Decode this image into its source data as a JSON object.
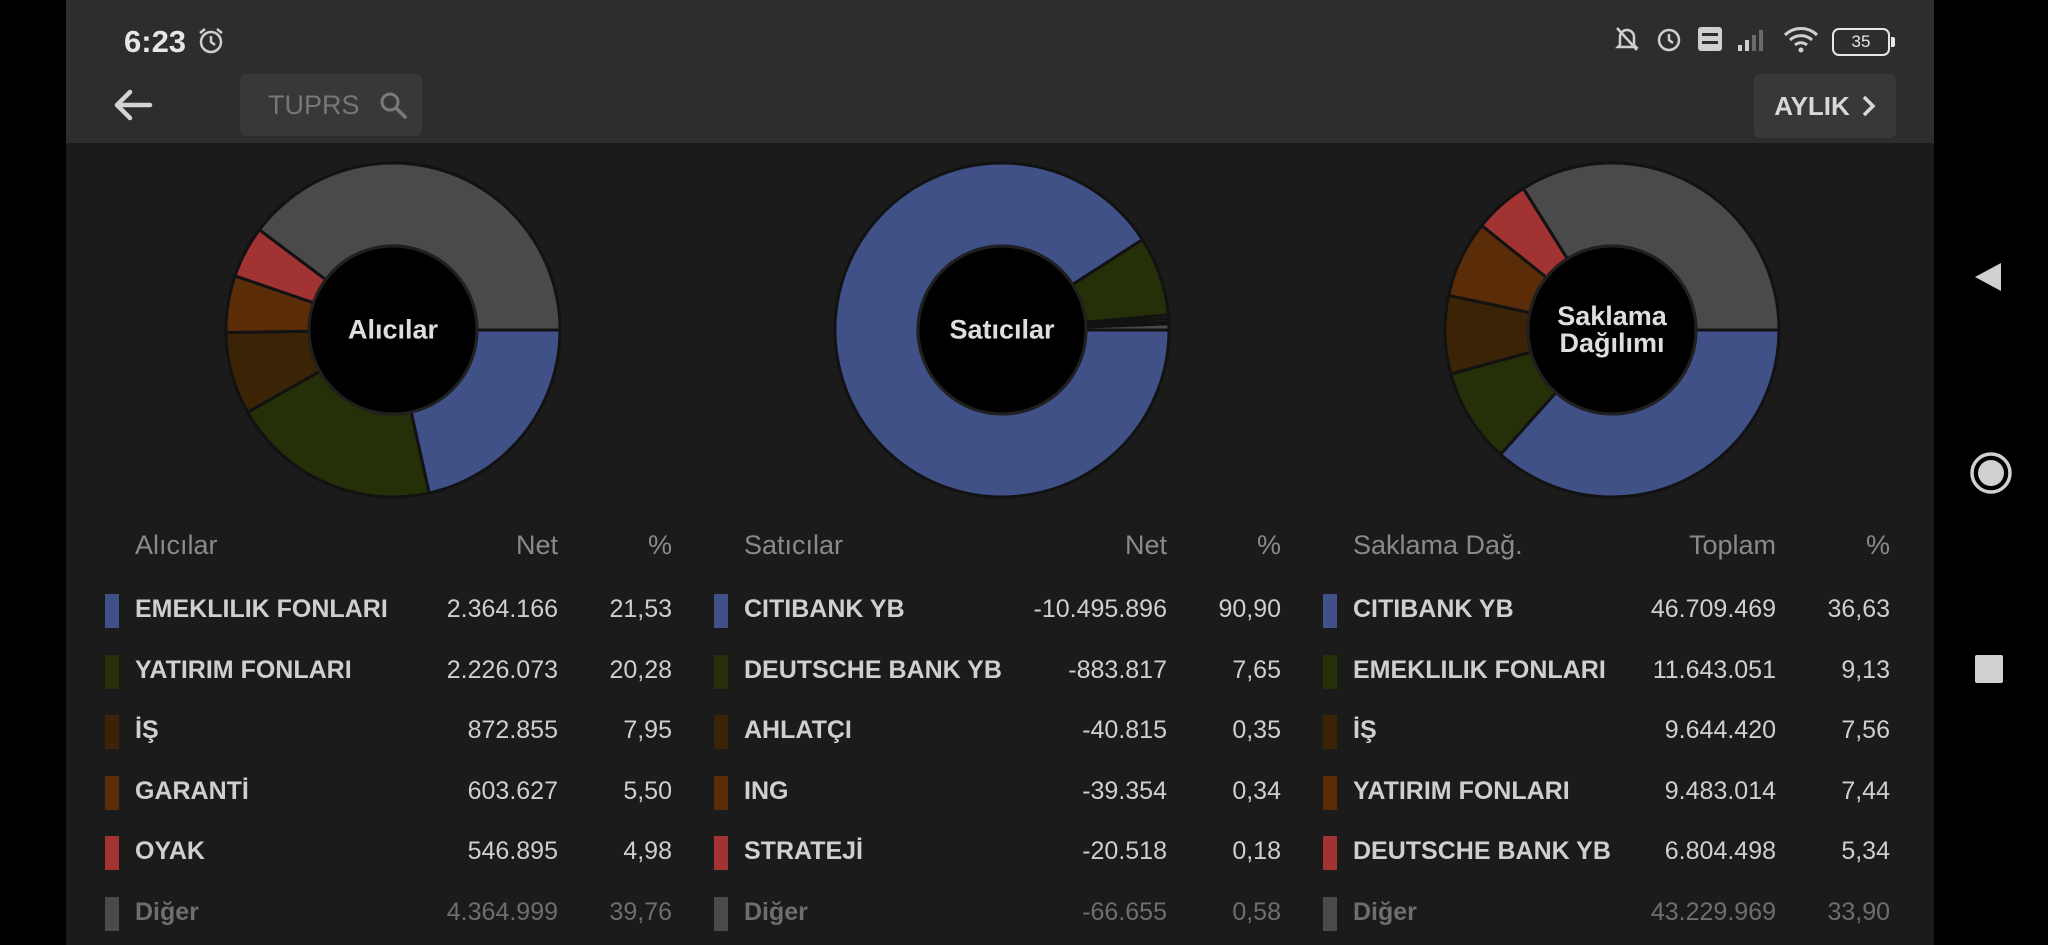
{
  "status_bar": {
    "time": "6:23",
    "battery": "35"
  },
  "search": {
    "value": "TUPRS"
  },
  "period_button": {
    "label": "AYLIK"
  },
  "colors": {
    "blue": "#405188",
    "olive": "#263008",
    "brown_dark": "#3b2406",
    "brown": "#5a2c08",
    "red": "#a13332",
    "grey": "#4a4a4a",
    "accent_text": "#cfcfcf"
  },
  "icons": [
    "alarm-icon",
    "muted-bell-icon",
    "volte-icon",
    "signal-icon",
    "wifi-icon",
    "battery-icon",
    "back-arrow-icon",
    "search-icon",
    "chevron-right-icon",
    "nav-back-icon",
    "nav-home-icon",
    "nav-recents-icon"
  ],
  "panels": [
    {
      "title": "Alıcılar",
      "headers": {
        "name": "Alıcılar",
        "value": "Net",
        "pct": "%"
      },
      "rows": [
        {
          "name": "EMEKLILIK FONLARI",
          "value": "2.364.166",
          "pct": "21,53"
        },
        {
          "name": "YATIRIM FONLARI",
          "value": "2.226.073",
          "pct": "20,28"
        },
        {
          "name": "İŞ",
          "value": "872.855",
          "pct": "7,95"
        },
        {
          "name": "GARANTİ",
          "value": "603.627",
          "pct": "5,50"
        },
        {
          "name": "OYAK",
          "value": "546.895",
          "pct": "4,98"
        },
        {
          "name": "Diğer",
          "value": "4.364.999",
          "pct": "39,76"
        }
      ]
    },
    {
      "title": "Satıcılar",
      "headers": {
        "name": "Satıcılar",
        "value": "Net",
        "pct": "%"
      },
      "rows": [
        {
          "name": "CITIBANK YB",
          "value": "-10.495.896",
          "pct": "90,90"
        },
        {
          "name": "DEUTSCHE BANK YB",
          "value": "-883.817",
          "pct": "7,65"
        },
        {
          "name": "AHLATÇI",
          "value": "-40.815",
          "pct": "0,35"
        },
        {
          "name": "ING",
          "value": "-39.354",
          "pct": "0,34"
        },
        {
          "name": "STRATEJİ",
          "value": "-20.518",
          "pct": "0,18"
        },
        {
          "name": "Diğer",
          "value": "-66.655",
          "pct": "0,58"
        }
      ]
    },
    {
      "title_line1": "Saklama",
      "title_line2": "Dağılımı",
      "headers": {
        "name": "Saklama Dağ.",
        "value": "Toplam",
        "pct": "%"
      },
      "rows": [
        {
          "name": "CITIBANK YB",
          "value": "46.709.469",
          "pct": "36,63"
        },
        {
          "name": "EMEKLILIK FONLARI",
          "value": "11.643.051",
          "pct": "9,13"
        },
        {
          "name": "İŞ",
          "value": "9.644.420",
          "pct": "7,56"
        },
        {
          "name": "YATIRIM FONLARI",
          "value": "9.483.014",
          "pct": "7,44"
        },
        {
          "name": "DEUTSCHE BANK YB",
          "value": "6.804.498",
          "pct": "5,34"
        },
        {
          "name": "Diğer",
          "value": "43.229.969",
          "pct": "33,90"
        }
      ]
    }
  ],
  "chart_data": [
    {
      "type": "pie",
      "title": "Alıcılar",
      "categories": [
        "EMEKLILIK FONLARI",
        "YATIRIM FONLARI",
        "İŞ",
        "GARANTİ",
        "OYAK",
        "Diğer"
      ],
      "values": [
        21.53,
        20.28,
        7.95,
        5.5,
        4.98,
        39.76
      ]
    },
    {
      "type": "pie",
      "title": "Satıcılar",
      "categories": [
        "CITIBANK YB",
        "DEUTSCHE BANK YB",
        "AHLATÇI",
        "ING",
        "STRATEJİ",
        "Diğer"
      ],
      "values": [
        90.9,
        7.65,
        0.35,
        0.34,
        0.18,
        0.58
      ]
    },
    {
      "type": "pie",
      "title": "Saklama Dağılımı",
      "categories": [
        "CITIBANK YB",
        "EMEKLILIK FONLARI",
        "İŞ",
        "YATIRIM FONLARI",
        "DEUTSCHE BANK YB",
        "Diğer"
      ],
      "values": [
        36.63,
        9.13,
        7.56,
        7.44,
        5.34,
        33.9
      ]
    }
  ]
}
